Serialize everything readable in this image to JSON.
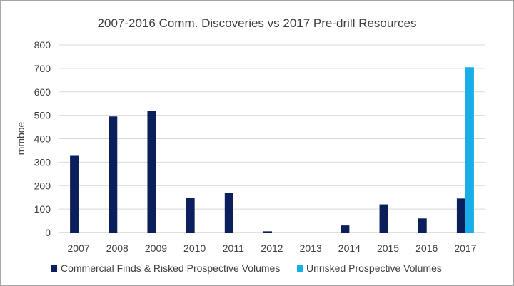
{
  "chart_data": {
    "type": "bar",
    "title": "2007-2016 Comm. Discoveries vs 2017 Pre-drill Resources",
    "xlabel": "",
    "ylabel": "mmboe",
    "categories": [
      "2007",
      "2008",
      "2009",
      "2010",
      "2011",
      "2012",
      "2013",
      "2014",
      "2015",
      "2016",
      "2017"
    ],
    "ylim": [
      0,
      800
    ],
    "yticks": [
      0,
      100,
      200,
      300,
      400,
      500,
      600,
      700,
      800
    ],
    "grid": true,
    "legend_position": "bottom",
    "series": [
      {
        "name": "Commercial Finds & Risked Prospective Volumes",
        "color": "#0b1f5c",
        "values": [
          327,
          495,
          520,
          147,
          170,
          5,
          0,
          30,
          120,
          60,
          145
        ]
      },
      {
        "name": "Unrisked Prospective Volumes",
        "color": "#19aee8",
        "values": [
          0,
          0,
          0,
          0,
          0,
          0,
          0,
          0,
          0,
          0,
          705
        ]
      }
    ]
  }
}
